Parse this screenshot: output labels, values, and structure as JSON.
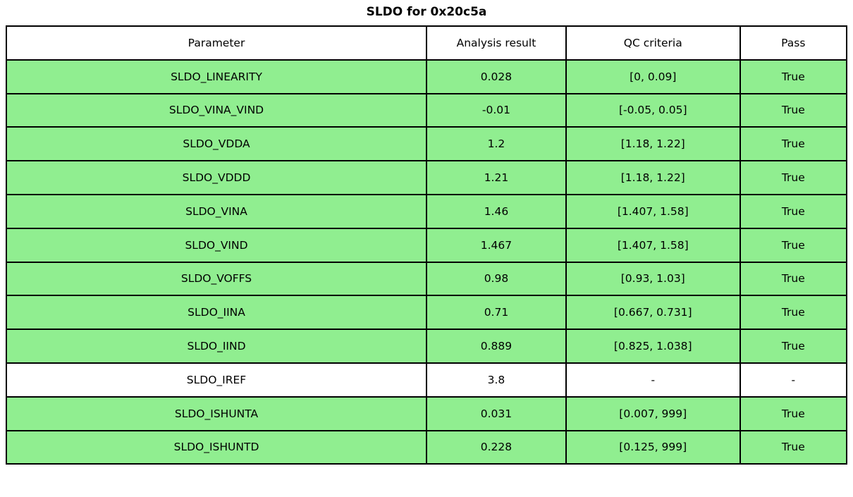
{
  "title": "SLDO for 0x20c5a",
  "chart_data": {
    "type": "table",
    "title": "SLDO for 0x20c5a",
    "columns": [
      "Parameter",
      "Analysis result",
      "QC criteria",
      "Pass"
    ],
    "rows": [
      {
        "parameter": "SLDO_LINEARITY",
        "result": "0.028",
        "criteria": "[0, 0.09]",
        "pass": "True",
        "highlighted": true
      },
      {
        "parameter": "SLDO_VINA_VIND",
        "result": "-0.01",
        "criteria": "[-0.05, 0.05]",
        "pass": "True",
        "highlighted": true
      },
      {
        "parameter": "SLDO_VDDA",
        "result": "1.2",
        "criteria": "[1.18, 1.22]",
        "pass": "True",
        "highlighted": true
      },
      {
        "parameter": "SLDO_VDDD",
        "result": "1.21",
        "criteria": "[1.18, 1.22]",
        "pass": "True",
        "highlighted": true
      },
      {
        "parameter": "SLDO_VINA",
        "result": "1.46",
        "criteria": "[1.407, 1.58]",
        "pass": "True",
        "highlighted": true
      },
      {
        "parameter": "SLDO_VIND",
        "result": "1.467",
        "criteria": "[1.407, 1.58]",
        "pass": "True",
        "highlighted": true
      },
      {
        "parameter": "SLDO_VOFFS",
        "result": "0.98",
        "criteria": "[0.93, 1.03]",
        "pass": "True",
        "highlighted": true
      },
      {
        "parameter": "SLDO_IINA",
        "result": "0.71",
        "criteria": "[0.667, 0.731]",
        "pass": "True",
        "highlighted": true
      },
      {
        "parameter": "SLDO_IIND",
        "result": "0.889",
        "criteria": "[0.825, 1.038]",
        "pass": "True",
        "highlighted": true
      },
      {
        "parameter": "SLDO_IREF",
        "result": "3.8",
        "criteria": "-",
        "pass": "-",
        "highlighted": false
      },
      {
        "parameter": "SLDO_ISHUNTA",
        "result": "0.031",
        "criteria": "[0.007, 999]",
        "pass": "True",
        "highlighted": true
      },
      {
        "parameter": "SLDO_ISHUNTD",
        "result": "0.228",
        "criteria": "[0.125, 999]",
        "pass": "True",
        "highlighted": true
      }
    ]
  },
  "colors": {
    "pass_row_green": "#90EE90",
    "neutral_row_white": "#ffffff",
    "border_black": "#000000"
  }
}
